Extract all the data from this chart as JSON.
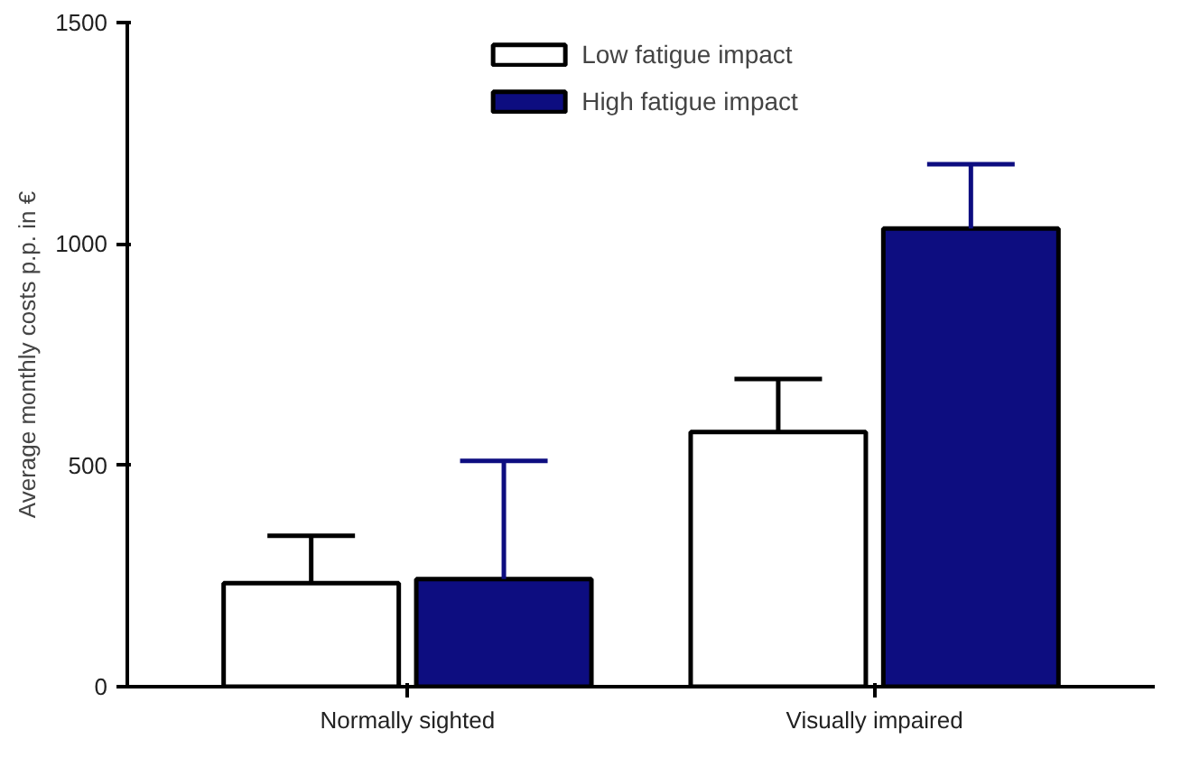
{
  "chart_data": {
    "type": "bar",
    "ylabel": "Average monthly costs p.p. in €",
    "categories": [
      "Normally sighted",
      "Visually impaired"
    ],
    "series": [
      {
        "name": "Low fatigue impact",
        "color": "#ffffff",
        "values": [
          234,
          575
        ],
        "errors": [
          [
            234,
            341
          ],
          [
            575,
            695
          ]
        ]
      },
      {
        "name": "High fatigue impact",
        "color": "#0d0d80",
        "values": [
          243,
          1035
        ],
        "errors": [
          [
            243,
            510
          ],
          [
            1035,
            1180
          ]
        ]
      }
    ],
    "ylim": [
      0,
      1500
    ],
    "yticks": [
      0,
      500,
      1000,
      1500
    ],
    "grid": false,
    "legend": "top"
  }
}
